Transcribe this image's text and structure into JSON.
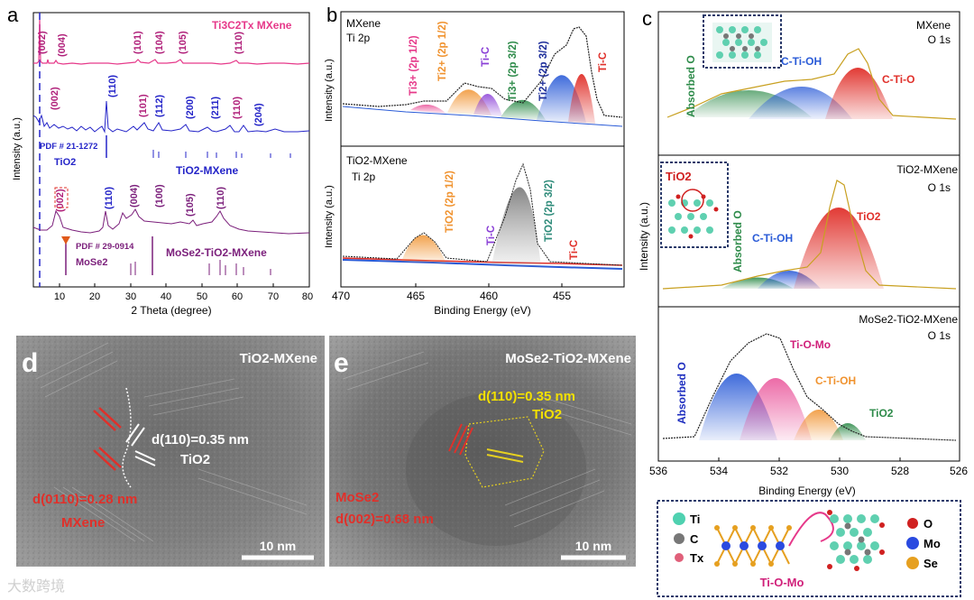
{
  "panels": {
    "a": {
      "label": "a",
      "xlabel": "2 Theta (degree)",
      "ylabel": "Intensity (a.u.)",
      "x_ticks": [
        "10",
        "20",
        "30",
        "40",
        "50",
        "60",
        "70",
        "80"
      ],
      "series": [
        {
          "name": "Ti3C2Tx MXene",
          "color": "#e6398a",
          "peaks": [
            "(002)",
            "(004)",
            "(101)",
            "(104)",
            "(105)",
            "(110)"
          ]
        },
        {
          "name": "TiO2",
          "color": "#2424c8",
          "peaks": [
            "(002)",
            "(110)",
            "(101)",
            "(112)",
            "(200)",
            "(211)",
            "(110)",
            "(204)"
          ],
          "ref": "PDF # 21-1272",
          "ref_name": "TiO2"
        },
        {
          "name": "TiO2-MXene",
          "color": "#2424c8"
        },
        {
          "name": "MoSe2-TiO2-MXene",
          "color": "#7b1f7b",
          "peaks": [
            "(002)",
            "(110)",
            "(004)",
            "(100)",
            "(105)",
            "(110)"
          ],
          "ref": "PDF # 29-0914",
          "ref_name": "MoSe2"
        }
      ]
    },
    "b": {
      "label": "b",
      "xlabel": "Binding Energy (eV)",
      "ylabel": "Intensity (a.u.)",
      "x_ticks": [
        "470",
        "465",
        "460",
        "455"
      ],
      "top": {
        "title": "MXene",
        "sub": "Ti 2p",
        "components": [
          "Ti3+ (2p 1/2)",
          "Ti2+ (2p 1/2)",
          "Ti-C",
          "Ti3+ (2p 3/2)",
          "Ti2+ (2p 3/2)",
          "Ti-C"
        ]
      },
      "bottom": {
        "title": "TiO2-MXene",
        "sub": "Ti 2p",
        "components": [
          "TiO2 (2p 1/2)",
          "Ti-C",
          "TiO2 (2p 3/2)",
          "Ti-C"
        ]
      }
    },
    "c": {
      "label": "c",
      "xlabel": "Binding Energy (eV)",
      "ylabel": "Intensity (a.u.)",
      "x_ticks": [
        "536",
        "534",
        "532",
        "530",
        "528",
        "526"
      ],
      "p1": {
        "title": "MXene",
        "sub": "O 1s",
        "components": [
          "Absorbed O",
          "C-Ti-OH",
          "C-Ti-O"
        ]
      },
      "p2": {
        "title": "TiO2-MXene",
        "sub": "O 1s",
        "components": [
          "TiO2",
          "Absorbed O",
          "C-Ti-OH",
          "TiO2"
        ]
      },
      "p3": {
        "title": "MoSe2-TiO2-MXene",
        "sub": "O 1s",
        "components": [
          "Absorbed O",
          "Ti-O-Mo",
          "C-Ti-OH",
          "TiO2"
        ]
      },
      "legend": {
        "ti": "Ti",
        "c": "C",
        "tx": "Tx",
        "o": "O",
        "mo": "Mo",
        "se": "Se",
        "bond": "Ti-O-Mo"
      }
    },
    "d": {
      "label": "d",
      "title": "TiO2-MXene",
      "d1": "d(110)=0.35 nm",
      "d1b": "TiO2",
      "d2": "d(0110)=0.28 nm",
      "d2b": "MXene",
      "scale": "10 nm"
    },
    "e": {
      "label": "e",
      "title": "MoSe2-TiO2-MXene",
      "d1": "d(110)=0.35 nm",
      "d1b": "TiO2",
      "d2": "MoSe2",
      "d2b": "d(002)=0.68 nm",
      "scale": "10 nm"
    }
  },
  "watermark": "大数跨境"
}
